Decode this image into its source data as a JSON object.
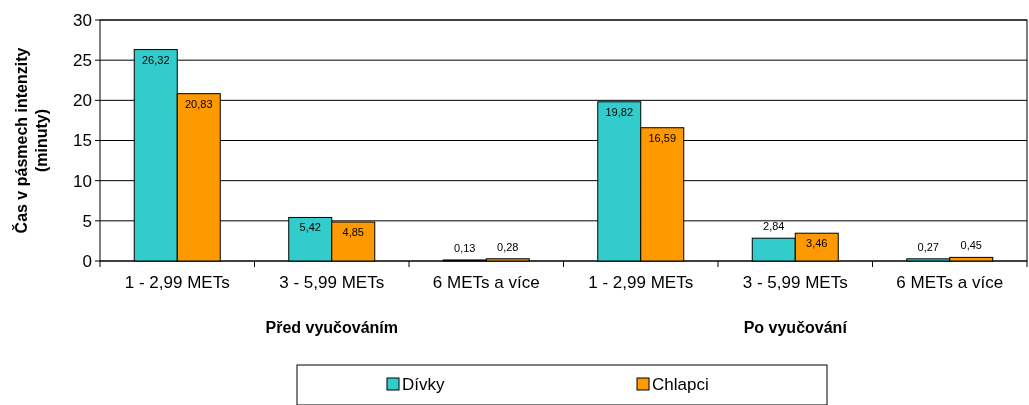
{
  "chart_data": {
    "type": "bar",
    "ylabel": "Čas v pásmech intenzity (minuty)",
    "categories": [
      "1 - 2,99 METs",
      "3 - 5,99 METs",
      "6 METs a více",
      "1 - 2,99 METs",
      "3 - 5,99 METs",
      "6 METs a více"
    ],
    "series": [
      {
        "name": "Dívky",
        "color": "#33cccc",
        "values": [
          26.32,
          5.42,
          0.13,
          19.82,
          2.84,
          0.27
        ],
        "value_labels": [
          "26,32",
          "5,42",
          "0,13",
          "19,82",
          "2,84",
          "0,27"
        ]
      },
      {
        "name": "Chlapci",
        "color": "#ff9900",
        "values": [
          20.83,
          4.85,
          0.28,
          16.59,
          3.46,
          0.45
        ],
        "value_labels": [
          "20,83",
          "4,85",
          "0,28",
          "16,59",
          "3,46",
          "0,45"
        ]
      }
    ],
    "annotations": [
      "Před vyučováním",
      "Po vyučování"
    ],
    "ylim": [
      0,
      30
    ],
    "yticks": [
      0,
      5,
      10,
      15,
      20,
      25,
      30
    ],
    "grid": "y",
    "legend": "bottom"
  }
}
